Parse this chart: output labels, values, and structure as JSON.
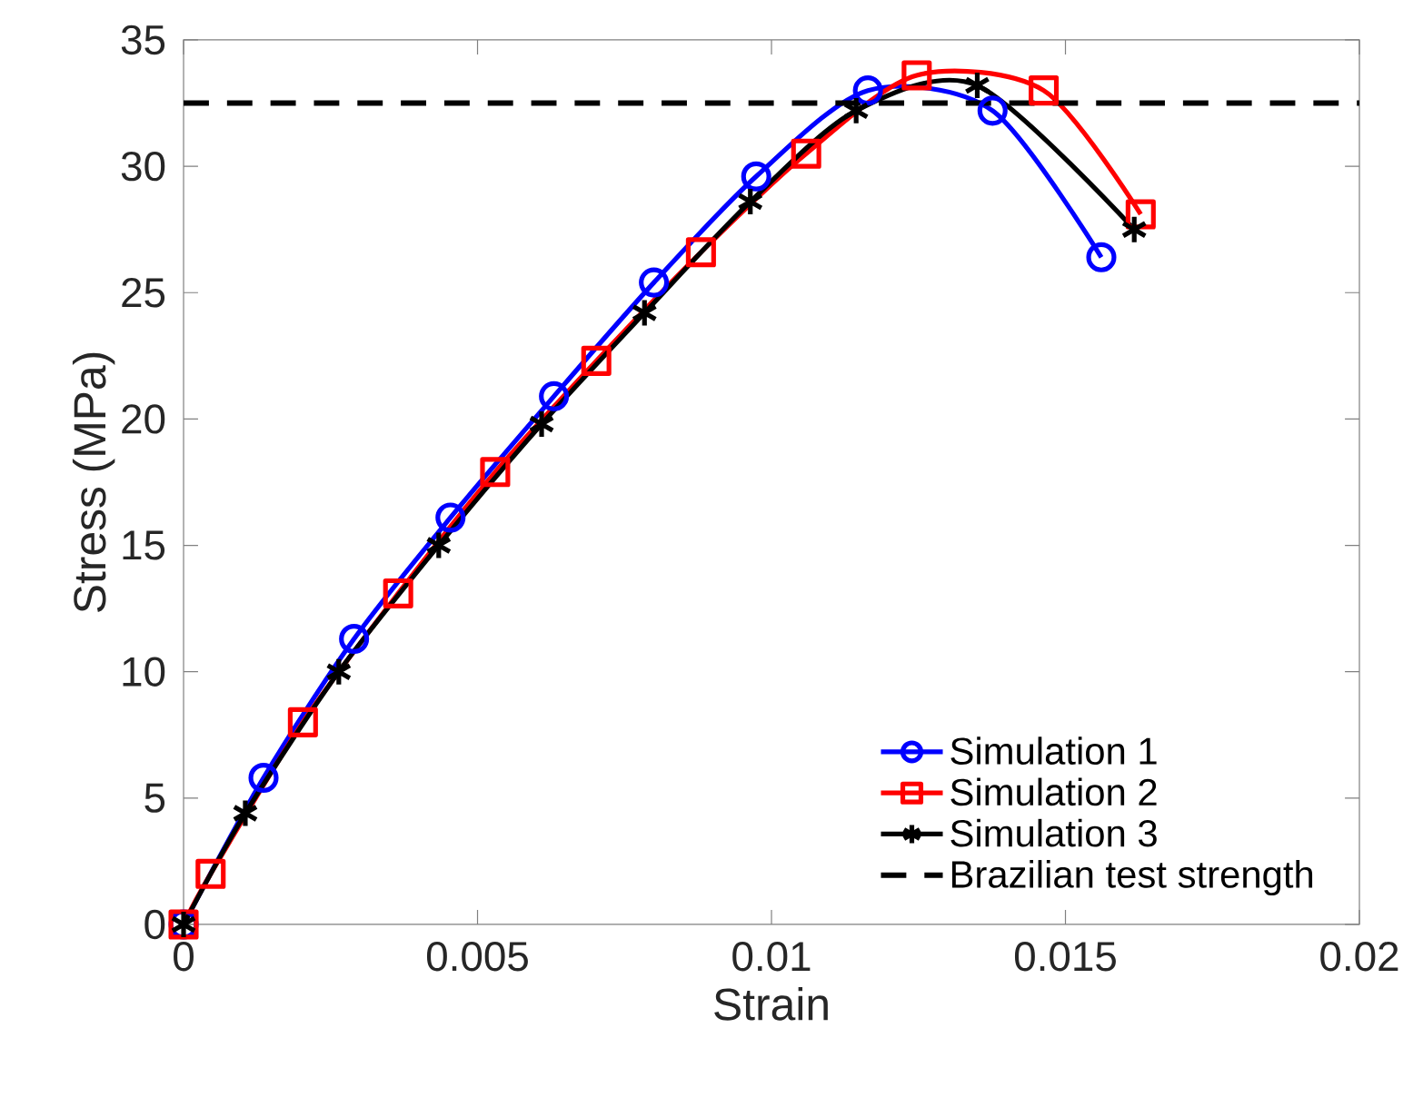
{
  "chart_data": {
    "type": "line",
    "xlabel": "Strain",
    "ylabel": "Stress (MPa)",
    "xlim": [
      0,
      0.02
    ],
    "ylim": [
      0,
      35
    ],
    "xticks": [
      0,
      0.005,
      0.01,
      0.015,
      0.02
    ],
    "yticks": [
      0,
      5,
      10,
      15,
      20,
      25,
      30,
      35
    ],
    "grid": false,
    "legend": "bottom right",
    "line_style": "solid",
    "series": [
      {
        "name": "Simulation 1",
        "color": "#0000ff",
        "marker": "circle",
        "x": [
          0,
          0.00136,
          0.0029,
          0.00454,
          0.0063,
          0.008,
          0.00974,
          0.01164,
          0.01376,
          0.01561
        ],
        "values": [
          0,
          5.8,
          11.3,
          16.1,
          20.9,
          25.4,
          29.6,
          33.0,
          32.2,
          26.4
        ]
      },
      {
        "name": "Simulation 2",
        "color": "#ff0000",
        "marker": "square",
        "x": [
          0,
          0.00046,
          0.00203,
          0.00365,
          0.0053,
          0.00702,
          0.0088,
          0.01059,
          0.01247,
          0.01463,
          0.01628
        ],
        "values": [
          0,
          2.0,
          8.0,
          13.1,
          17.9,
          22.3,
          26.6,
          30.5,
          33.6,
          33.0,
          28.1
        ]
      },
      {
        "name": "Simulation 3",
        "color": "#000000",
        "marker": "cross",
        "x": [
          0,
          0.00105,
          0.00264,
          0.00434,
          0.00609,
          0.00784,
          0.00964,
          0.01144,
          0.0135,
          0.01617
        ],
        "values": [
          0,
          4.4,
          10.0,
          15.0,
          19.8,
          24.2,
          28.6,
          32.2,
          33.2,
          27.5
        ]
      }
    ],
    "ref_lines": [
      {
        "axis": "y",
        "value": 32.5,
        "label": "Brazilian test strength",
        "color": "#000000",
        "line_style": "dashed"
      }
    ]
  }
}
